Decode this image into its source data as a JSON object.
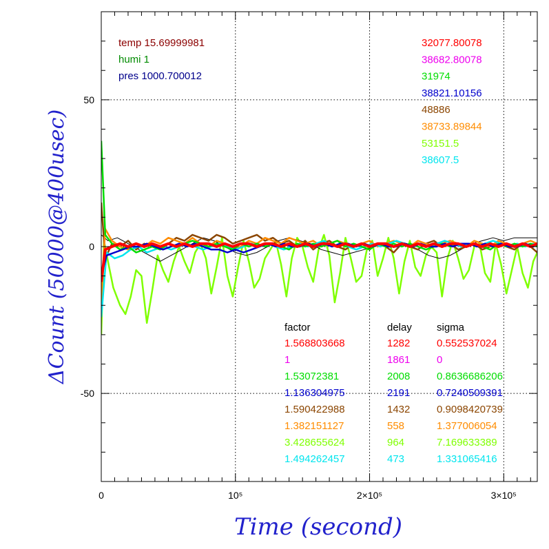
{
  "chart_data": {
    "type": "line",
    "xlabel": "Time (second)",
    "ylabel": "ΔCount (50000@400usec)",
    "xlim": [
      0,
      325000
    ],
    "ylim": [
      -80,
      80
    ],
    "x_ticks": [
      {
        "value": 0,
        "label": "0"
      },
      {
        "value": 100000,
        "label": "10⁵"
      },
      {
        "value": 200000,
        "label": "2×10⁵"
      },
      {
        "value": 300000,
        "label": "3×10⁵"
      }
    ],
    "y_ticks": [
      {
        "value": 50,
        "label": "50"
      },
      {
        "value": 0,
        "label": "0"
      },
      {
        "value": -50,
        "label": "-50"
      }
    ],
    "grid": true,
    "env_labels": [
      {
        "text": "temp 15.69999981",
        "color": "#8b0000"
      },
      {
        "text": "humi 1",
        "color": "#008b00"
      },
      {
        "text": "pres 1000.700012",
        "color": "#00008b"
      }
    ],
    "series_values": [
      {
        "text": "32077.80078",
        "color": "#ff0000"
      },
      {
        "text": "38682.80078",
        "color": "#ee00ee"
      },
      {
        "text": "31974",
        "color": "#00dd00"
      },
      {
        "text": "38821.10156",
        "color": "#0000cc"
      },
      {
        "text": "48886",
        "color": "#8b4500"
      },
      {
        "text": "38733.89844",
        "color": "#ff8c00"
      },
      {
        "text": "53151.5",
        "color": "#7fff00"
      },
      {
        "text": "38607.5",
        "color": "#00e5ee"
      }
    ],
    "table_headers": [
      "factor",
      "delay",
      "sigma"
    ],
    "table_rows": [
      {
        "factor": "1.568803668",
        "delay": "1282",
        "sigma": "0.552537024",
        "color": "#ff0000"
      },
      {
        "factor": "1",
        "delay": "1861",
        "sigma": "0",
        "color": "#ee00ee"
      },
      {
        "factor": "1.53072381",
        "delay": "2008",
        "sigma": "0.8636686206",
        "color": "#00dd00"
      },
      {
        "factor": "1.136304975",
        "delay": "2191",
        "sigma": "0.7240509391",
        "color": "#0000cc"
      },
      {
        "factor": "1.590422988",
        "delay": "1432",
        "sigma": "0.9098420739",
        "color": "#8b4500"
      },
      {
        "factor": "1.382151127",
        "delay": "558",
        "sigma": "1.377006054",
        "color": "#ff8c00"
      },
      {
        "factor": "3.428655624",
        "delay": "964",
        "sigma": "7.169633389",
        "color": "#7fff00"
      },
      {
        "factor": "1.494262457",
        "delay": "473",
        "sigma": "1.331065416",
        "color": "#00e5ee"
      }
    ],
    "series": [
      {
        "color": "#7fff00",
        "x": [
          0,
          2000,
          5000,
          9000,
          14000,
          18000,
          22000,
          26000,
          30000,
          34000,
          38000,
          42000,
          46000,
          50000,
          54000,
          58000,
          62000,
          66000,
          70000,
          74000,
          78000,
          82000,
          86000,
          90000,
          94000,
          98000,
          102000,
          106000,
          110000,
          114000,
          118000,
          122000,
          126000,
          130000,
          134000,
          138000,
          142000,
          146000,
          150000,
          154000,
          158000,
          162000,
          166000,
          170000,
          174000,
          178000,
          182000,
          186000,
          190000,
          194000,
          198000,
          202000,
          206000,
          210000,
          214000,
          218000,
          222000,
          226000,
          230000,
          234000,
          238000,
          242000,
          246000,
          250000,
          254000,
          258000,
          262000,
          266000,
          270000,
          274000,
          278000,
          282000,
          286000,
          290000,
          294000,
          298000,
          302000,
          306000,
          310000,
          314000,
          318000,
          322000,
          325000
        ],
        "y": [
          -30,
          2,
          -5,
          -14,
          -20,
          -23,
          -17,
          -8,
          -10,
          -26,
          -15,
          -3,
          -8,
          -12,
          -5,
          0,
          -5,
          -9,
          -2,
          1,
          -4,
          -16,
          -7,
          3,
          -10,
          -17,
          -7,
          2,
          -5,
          -14,
          -11,
          -4,
          -1,
          2,
          -6,
          -17,
          -4,
          3,
          0,
          -7,
          -12,
          -1,
          4,
          -3,
          -19,
          -9,
          3,
          -4,
          -12,
          -10,
          -1,
          2,
          -10,
          -4,
          3,
          -4,
          -16,
          -5,
          2,
          -7,
          -10,
          -3,
          0,
          -2,
          -17,
          -4,
          2,
          -4,
          -11,
          -8,
          0,
          1,
          -9,
          -12,
          1,
          -6,
          -16,
          -8,
          0,
          -9,
          -14,
          -5,
          -2
        ]
      },
      {
        "color": "#000000",
        "x": [
          0,
          5000,
          12000,
          20000,
          28000,
          36000,
          44000,
          52000,
          60000,
          68000,
          76000,
          84000,
          92000,
          100000,
          108000,
          116000,
          124000,
          132000,
          140000,
          148000,
          156000,
          164000,
          172000,
          180000,
          188000,
          196000,
          204000,
          212000,
          220000,
          228000,
          236000,
          244000,
          252000,
          260000,
          268000,
          276000,
          284000,
          292000,
          300000,
          308000,
          316000,
          325000
        ],
        "y": [
          4,
          2,
          3,
          1,
          -1,
          -3,
          -5,
          -3,
          -1,
          1,
          3,
          2,
          0,
          -2,
          -3,
          -2,
          0,
          2,
          3,
          2,
          1,
          -1,
          -2,
          -3,
          -2,
          -1,
          0,
          1,
          2,
          1,
          -1,
          -3,
          -4,
          -3,
          -1,
          1,
          2,
          3,
          2,
          3,
          3,
          3
        ]
      },
      {
        "color": "#8b4500",
        "x": [
          0,
          3000,
          8000,
          14000,
          20000,
          26000,
          32000,
          38000,
          44000,
          50000,
          56000,
          62000,
          68000,
          74000,
          80000,
          86000,
          92000,
          98000,
          104000,
          110000,
          116000,
          122000,
          128000,
          134000,
          140000,
          146000,
          152000,
          158000,
          164000,
          170000,
          176000,
          182000,
          188000,
          194000,
          200000,
          206000,
          212000,
          218000,
          224000,
          230000,
          236000,
          242000,
          248000,
          254000,
          260000,
          266000,
          272000,
          278000,
          284000,
          290000,
          296000,
          302000,
          308000,
          314000,
          320000,
          325000
        ],
        "y": [
          15,
          -4,
          1,
          0,
          2,
          -1,
          1,
          0,
          -1,
          1,
          3,
          2,
          4,
          3,
          2,
          4,
          3,
          1,
          2,
          3,
          4,
          2,
          3,
          1,
          2,
          0,
          2,
          -1,
          1,
          2,
          0,
          -1,
          1,
          0,
          -1,
          1,
          0,
          -2,
          1,
          0,
          -1,
          1,
          2,
          0,
          1,
          -1,
          0,
          1,
          -1,
          0,
          1,
          0,
          -1,
          1,
          0,
          -2
        ]
      },
      {
        "color": "#ff8c00",
        "x": [
          0,
          3000,
          8000,
          14000,
          20000,
          26000,
          32000,
          38000,
          44000,
          50000,
          56000,
          62000,
          68000,
          74000,
          80000,
          86000,
          92000,
          98000,
          104000,
          110000,
          116000,
          122000,
          128000,
          134000,
          140000,
          146000,
          152000,
          158000,
          164000,
          170000,
          176000,
          182000,
          188000,
          194000,
          200000,
          206000,
          212000,
          218000,
          224000,
          230000,
          236000,
          242000,
          248000,
          254000,
          260000,
          266000,
          272000,
          278000,
          284000,
          290000,
          296000,
          302000,
          308000,
          314000,
          320000,
          325000
        ],
        "y": [
          -18,
          6,
          2,
          0,
          -1,
          1,
          0,
          2,
          1,
          3,
          2,
          1,
          3,
          1,
          0,
          2,
          1,
          -1,
          0,
          2,
          1,
          3,
          2,
          1,
          3,
          2,
          1,
          2,
          0,
          1,
          2,
          1,
          0,
          1,
          2,
          0,
          1,
          2,
          1,
          0,
          2,
          1,
          0,
          1,
          2,
          1,
          0,
          2,
          1,
          0,
          2,
          1,
          0,
          1,
          2,
          1
        ]
      },
      {
        "color": "#00e5ee",
        "x": [
          0,
          4000,
          10000,
          16000,
          22000,
          28000,
          34000,
          40000,
          46000,
          52000,
          58000,
          64000,
          70000,
          76000,
          82000,
          88000,
          94000,
          100000,
          106000,
          112000,
          118000,
          124000,
          130000,
          136000,
          142000,
          148000,
          154000,
          160000,
          166000,
          172000,
          178000,
          184000,
          190000,
          196000,
          202000,
          208000,
          214000,
          220000,
          226000,
          232000,
          238000,
          244000,
          250000,
          256000,
          262000,
          268000,
          274000,
          280000,
          286000,
          292000,
          298000,
          304000,
          310000,
          316000,
          322000,
          325000
        ],
        "y": [
          -24,
          -2,
          -4,
          -3,
          -1,
          0,
          -2,
          -1,
          0,
          -1,
          0,
          1,
          0,
          -1,
          0,
          1,
          0,
          -1,
          0,
          1,
          0,
          1,
          0,
          -1,
          0,
          1,
          0,
          1,
          2,
          0,
          1,
          0,
          -1,
          0,
          1,
          0,
          1,
          2,
          1,
          0,
          1,
          0,
          1,
          2,
          1,
          0,
          1,
          0,
          1,
          2,
          1,
          0,
          1,
          0,
          1,
          0
        ]
      },
      {
        "color": "#00dd00",
        "x": [
          0,
          3000,
          8000,
          14000,
          20000,
          26000,
          32000,
          38000,
          44000,
          50000,
          56000,
          62000,
          68000,
          74000,
          80000,
          86000,
          92000,
          98000,
          104000,
          110000,
          116000,
          122000,
          128000,
          134000,
          140000,
          146000,
          152000,
          158000,
          164000,
          170000,
          176000,
          182000,
          188000,
          194000,
          200000,
          206000,
          212000,
          218000,
          224000,
          230000,
          236000,
          242000,
          248000,
          254000,
          260000,
          266000,
          272000,
          278000,
          284000,
          290000,
          296000,
          302000,
          308000,
          314000,
          320000,
          325000
        ],
        "y": [
          36,
          4,
          1,
          -1,
          0,
          -2,
          -1,
          0,
          -1,
          1,
          0,
          1,
          2,
          1,
          0,
          1,
          0,
          -1,
          1,
          0,
          1,
          0,
          1,
          0,
          -1,
          1,
          0,
          1,
          0,
          1,
          2,
          0,
          1,
          0,
          -1,
          1,
          0,
          1,
          0,
          1,
          0,
          -1,
          0,
          1,
          0,
          1,
          0,
          1,
          0,
          -1,
          1,
          0,
          1,
          0,
          1,
          0
        ]
      },
      {
        "color": "#0000cc",
        "x": [
          0,
          4000,
          10000,
          16000,
          22000,
          28000,
          34000,
          40000,
          46000,
          52000,
          58000,
          64000,
          70000,
          76000,
          82000,
          88000,
          94000,
          100000,
          106000,
          112000,
          118000,
          124000,
          130000,
          136000,
          142000,
          148000,
          154000,
          160000,
          166000,
          172000,
          178000,
          184000,
          190000,
          196000,
          202000,
          208000,
          214000,
          220000,
          226000,
          232000,
          238000,
          244000,
          250000,
          256000,
          262000,
          268000,
          274000,
          280000,
          286000,
          292000,
          298000,
          304000,
          310000,
          316000,
          322000,
          325000
        ],
        "y": [
          -10,
          -3,
          -2,
          -1,
          0,
          0,
          1,
          0,
          -1,
          0,
          1,
          0,
          1,
          0,
          -1,
          -1,
          -2,
          -1,
          -2,
          -1,
          0,
          1,
          0,
          1,
          0,
          0,
          1,
          0,
          1,
          0,
          1,
          1,
          0,
          1,
          0,
          1,
          0,
          0,
          1,
          0,
          1,
          0,
          0,
          1,
          0,
          1,
          1,
          0,
          1,
          0,
          1,
          0,
          0,
          1,
          0,
          1
        ]
      },
      {
        "color": "#ff0000",
        "x": [
          0,
          3000,
          8000,
          14000,
          20000,
          26000,
          32000,
          38000,
          44000,
          50000,
          56000,
          62000,
          68000,
          74000,
          80000,
          86000,
          92000,
          98000,
          104000,
          110000,
          116000,
          122000,
          128000,
          134000,
          140000,
          146000,
          152000,
          158000,
          164000,
          170000,
          176000,
          182000,
          188000,
          194000,
          200000,
          206000,
          212000,
          218000,
          224000,
          230000,
          236000,
          242000,
          248000,
          254000,
          260000,
          266000,
          272000,
          278000,
          284000,
          290000,
          296000,
          302000,
          308000,
          314000,
          320000,
          325000
        ],
        "y": [
          -12,
          -1,
          0,
          1,
          0,
          1,
          0,
          1,
          0,
          1,
          0,
          1,
          0,
          1,
          1,
          0,
          1,
          0,
          1,
          1,
          0,
          1,
          1,
          0,
          1,
          0,
          1,
          0,
          1,
          1,
          0,
          1,
          0,
          1,
          0,
          1,
          1,
          0,
          1,
          0,
          1,
          0,
          1,
          0,
          1,
          1,
          0,
          1,
          0,
          1,
          0,
          1,
          0,
          1,
          0,
          1
        ]
      }
    ]
  }
}
